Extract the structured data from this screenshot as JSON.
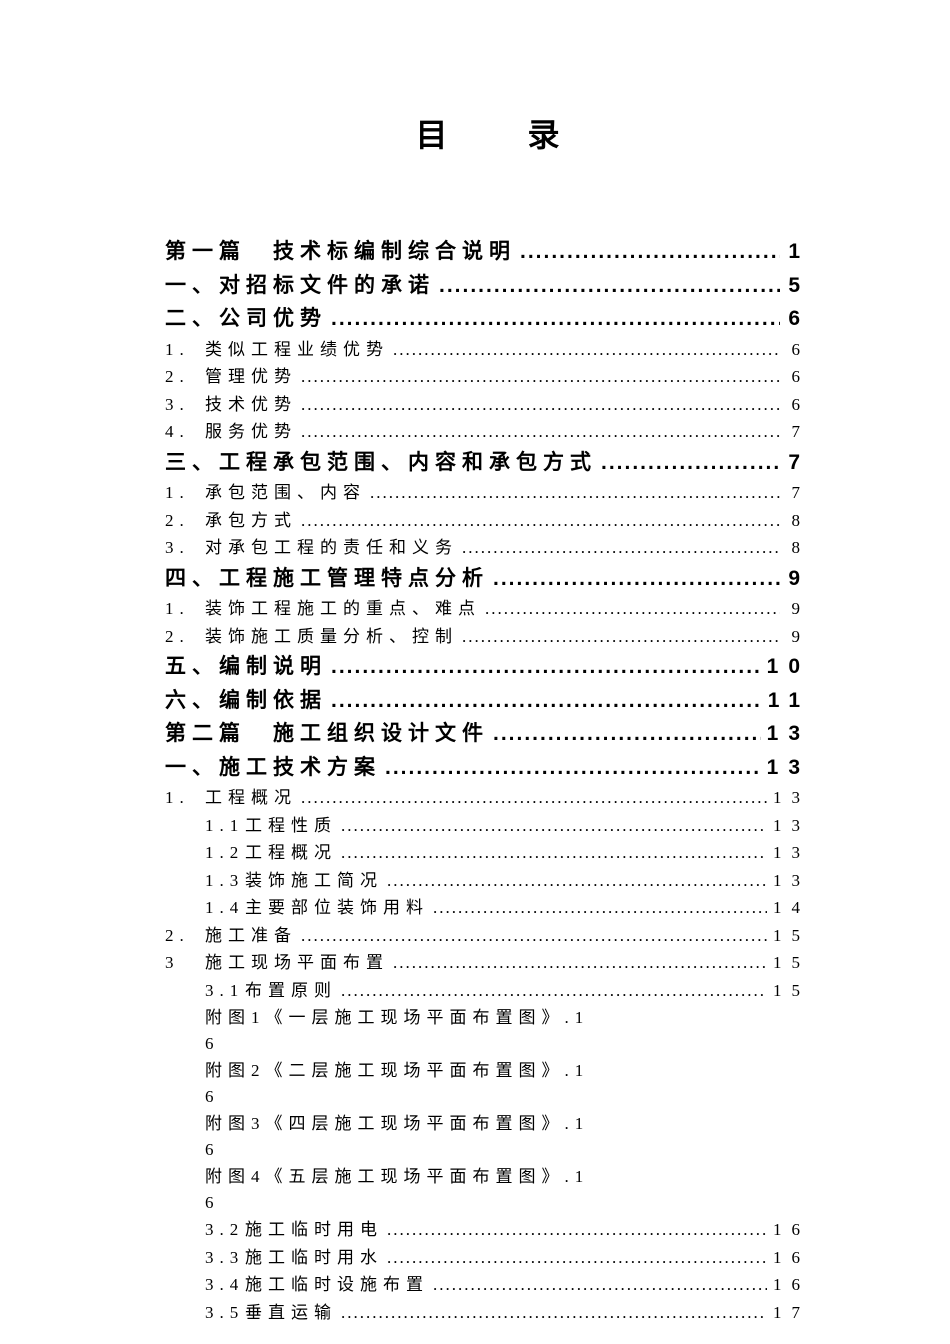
{
  "title": "目录",
  "entries": [
    {
      "level": "heading",
      "num": "",
      "text": "第一篇　技术标编制综合说明",
      "page": "1",
      "bold": true
    },
    {
      "level": "heading",
      "num": "",
      "text": "一、对招标文件的承诺",
      "page": "5",
      "bold": true
    },
    {
      "level": "heading",
      "num": "",
      "text": "二、公司优势",
      "page": "6",
      "bold": true
    },
    {
      "level": "sub1",
      "num": "1.",
      "text": "类似工程业绩优势",
      "page": "6"
    },
    {
      "level": "sub1",
      "num": "2.",
      "text": "管理优势",
      "page": "6"
    },
    {
      "level": "sub1",
      "num": "3.",
      "text": "技术优势",
      "page": "6"
    },
    {
      "level": "sub1",
      "num": "4.",
      "text": "服务优势",
      "page": "7"
    },
    {
      "level": "heading",
      "num": "",
      "text": "三、工程承包范围、内容和承包方式",
      "page": "7",
      "bold": true
    },
    {
      "level": "sub1",
      "num": "1.",
      "text": "承包范围、内容",
      "page": "7"
    },
    {
      "level": "sub1",
      "num": "2.",
      "text": "承包方式",
      "page": "8"
    },
    {
      "level": "sub1",
      "num": "3.",
      "text": "对承包工程的责任和义务",
      "page": "8"
    },
    {
      "level": "heading",
      "num": "",
      "text": "四、工程施工管理特点分析",
      "page": "9",
      "bold": true
    },
    {
      "level": "sub1",
      "num": "1.",
      "text": "装饰工程施工的重点、难点",
      "page": "9"
    },
    {
      "level": "sub1",
      "num": "2.",
      "text": "装饰施工质量分析、控制",
      "page": "9"
    },
    {
      "level": "heading",
      "num": "",
      "text": "五、编制说明",
      "page": "10",
      "bold": true
    },
    {
      "level": "heading",
      "num": "",
      "text": "六、编制依据",
      "page": "11",
      "bold": true
    },
    {
      "level": "heading",
      "num": "",
      "text": "第二篇　施工组织设计文件",
      "page": "13",
      "bold": true
    },
    {
      "level": "heading",
      "num": "",
      "text": "一、施工技术方案",
      "page": "13",
      "bold": true
    },
    {
      "level": "sub1",
      "num": "1.",
      "text": "工程概况",
      "page": "13"
    },
    {
      "level": "sub2",
      "num": "1.1",
      "text": "工程性质",
      "page": "13"
    },
    {
      "level": "sub2",
      "num": "1.2",
      "text": "工程概况",
      "page": "13"
    },
    {
      "level": "sub2",
      "num": "1.3",
      "text": "装饰施工简况",
      "page": "13"
    },
    {
      "level": "sub2",
      "num": "1.4",
      "text": "主要部位装饰用料",
      "page": "14"
    },
    {
      "level": "sub1",
      "num": "2.",
      "text": "施工准备",
      "page": "15"
    },
    {
      "level": "sub1",
      "num": "3",
      "text": "施工现场平面布置",
      "page": "15"
    },
    {
      "level": "sub2",
      "num": "3.1",
      "text": "布置原则",
      "page": "15"
    },
    {
      "level": "wrap",
      "num": "",
      "text": "附图1《一层施工现场平面布置图》.1",
      "second": "6"
    },
    {
      "level": "wrap",
      "num": "",
      "text": "附图2《二层施工现场平面布置图》.1",
      "second": "6"
    },
    {
      "level": "wrap",
      "num": "",
      "text": "附图3《四层施工现场平面布置图》.1",
      "second": "6"
    },
    {
      "level": "wrap",
      "num": "",
      "text": "附图4《五层施工现场平面布置图》.1",
      "second": "6"
    },
    {
      "level": "sub2",
      "num": "3.2",
      "text": "施工临时用电",
      "page": "16"
    },
    {
      "level": "sub2",
      "num": "3.3",
      "text": "施工临时用水",
      "page": "16"
    },
    {
      "level": "sub2",
      "num": "3.4",
      "text": "施工临时设施布置",
      "page": "16"
    },
    {
      "level": "sub2",
      "num": "3.5",
      "text": "垂直运输",
      "page": "17"
    }
  ]
}
